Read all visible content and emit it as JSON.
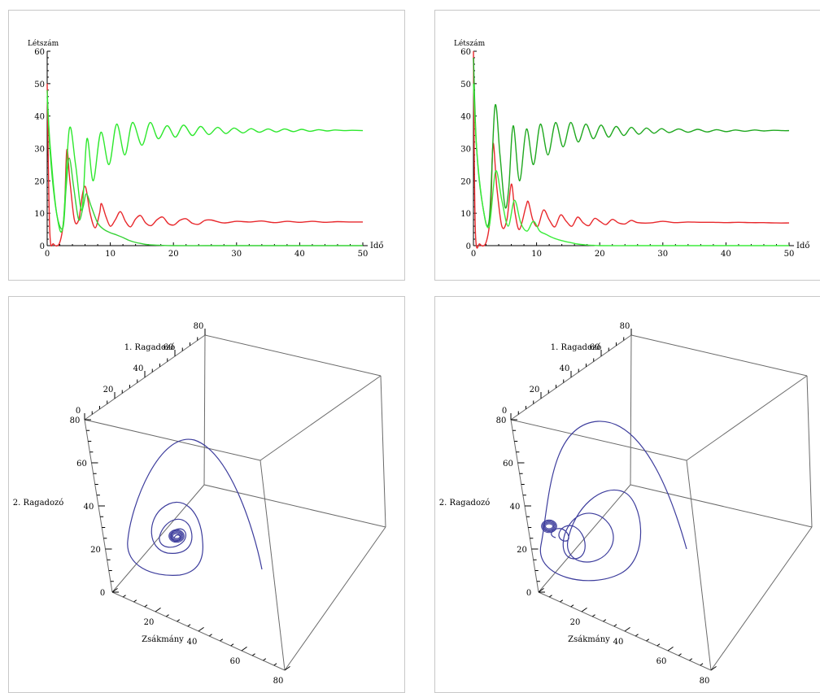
{
  "colors": {
    "prey": "#e8282c",
    "pred1_left": "#36d236",
    "pred2_left": "#2ee82e",
    "pred1_right": "#1fa81f",
    "pred2_right": "#3cec3c",
    "trajectory": "#3c3c9c",
    "axis": "#000000",
    "frame": "#6a6a6a"
  },
  "chart_data": [
    {
      "type": "line",
      "ylabel": "Létszám",
      "xlabel": "Idő",
      "xlim": [
        0,
        50
      ],
      "ylim": [
        0,
        60
      ],
      "xticks": [
        "0",
        "10",
        "20",
        "30",
        "40",
        "50"
      ],
      "yticks": [
        "0",
        "10",
        "20",
        "30",
        "40",
        "50",
        "60"
      ],
      "series": [
        {
          "role": "prey",
          "color": "#e8282c",
          "x": [
            0,
            0.4,
            1,
            2,
            2.7,
            3.1,
            3.6,
            4.3,
            5,
            5.6,
            6.1,
            6.8,
            7.6,
            8.3,
            8.6,
            9.3,
            10,
            10.8,
            11.6,
            12.4,
            13.2,
            14,
            14.8,
            15.6,
            16.5,
            17.4,
            18.3,
            19.2,
            20.1,
            21,
            22,
            23,
            24,
            25,
            26,
            28,
            30,
            32,
            34,
            36,
            38,
            40,
            42,
            44,
            46,
            48,
            50
          ],
          "y": [
            50,
            5,
            0.5,
            1,
            10,
            29.5,
            20,
            8,
            8,
            16,
            18,
            10,
            5.5,
            10,
            13,
            9,
            6,
            8,
            10.5,
            7.5,
            5.8,
            8.2,
            9.3,
            7,
            6.2,
            8,
            8.8,
            6.8,
            6.4,
            7.8,
            8.3,
            6.9,
            6.6,
            7.8,
            7.9,
            7,
            7.5,
            7.3,
            7.6,
            7.1,
            7.5,
            7.2,
            7.5,
            7.2,
            7.4,
            7.3,
            7.3
          ]
        },
        {
          "role": "predator-1",
          "color": "#36d236",
          "x": [
            0,
            0.5,
            1.5,
            2.5,
            3,
            3.5,
            4.2,
            5,
            5.7,
            6.2,
            7,
            8,
            9,
            10,
            11,
            12,
            13,
            14,
            15,
            16,
            18,
            20,
            25,
            30,
            40,
            50
          ],
          "y": [
            48,
            28,
            10,
            5.5,
            18,
            27,
            18,
            8,
            12,
            16,
            12,
            7,
            5,
            4,
            3.3,
            2.5,
            1.6,
            1,
            0.6,
            0.3,
            0.1,
            0,
            0,
            0,
            0,
            0
          ]
        },
        {
          "role": "predator-2",
          "color": "#2ee82e",
          "x": [
            0,
            0.5,
            1.5,
            2.5,
            3.5,
            4.5,
            5.5,
            6.3,
            7.3,
            8.5,
            9.8,
            11,
            12.3,
            13.5,
            15,
            16.3,
            17.6,
            19,
            20.3,
            21.6,
            23,
            24.3,
            25.6,
            27,
            28.3,
            29.6,
            31,
            32.3,
            33.6,
            35,
            36.3,
            37.6,
            39,
            40.3,
            41.6,
            43,
            44.3,
            45.6,
            47,
            48.3,
            50
          ],
          "y": [
            46,
            30,
            10,
            6,
            36,
            25,
            11,
            33,
            20,
            35,
            25,
            37.5,
            28,
            38,
            31,
            38,
            33,
            37,
            33.5,
            37.2,
            34,
            36.8,
            34.3,
            36.5,
            34.6,
            36.3,
            34.8,
            36.1,
            35,
            36,
            35.1,
            36,
            35.2,
            35.9,
            35.3,
            35.8,
            35.4,
            35.7,
            35.5,
            35.6,
            35.5
          ]
        }
      ]
    },
    {
      "type": "line",
      "ylabel": "Létszám",
      "xlabel": "Idő",
      "xlim": [
        0,
        50
      ],
      "ylim": [
        0,
        60
      ],
      "xticks": [
        "0",
        "10",
        "20",
        "30",
        "40",
        "50"
      ],
      "yticks": [
        "0",
        "10",
        "20",
        "30",
        "40",
        "50",
        "60"
      ],
      "series": [
        {
          "role": "prey",
          "color": "#e8282c",
          "x": [
            0,
            0.3,
            1,
            2,
            2.7,
            3.1,
            3.7,
            4.5,
            5.3,
            6,
            6.6,
            7.3,
            8.3,
            8.7,
            9.4,
            10.2,
            11.1,
            12,
            12.9,
            13.8,
            14.7,
            15.6,
            16.5,
            17.4,
            18.3,
            19.2,
            20.1,
            21,
            22,
            23,
            24,
            25,
            26,
            28,
            30,
            32,
            34,
            36,
            38,
            40,
            42,
            44,
            46,
            48,
            50
          ],
          "y": [
            60,
            5,
            0.5,
            1,
            10,
            31.5,
            18,
            6,
            8,
            19,
            10,
            5,
            12,
            13.5,
            8,
            6,
            11,
            8,
            5.8,
            9.5,
            7.5,
            6,
            8.8,
            7,
            6.2,
            8.4,
            7.4,
            6.5,
            8.1,
            7,
            6.7,
            7.8,
            7.1,
            7,
            7.5,
            7.1,
            7.3,
            7.2,
            7.2,
            7.1,
            7.2,
            7.1,
            7.1,
            7,
            7
          ]
        },
        {
          "role": "predator-1",
          "color": "#1fa81f",
          "x": [
            0,
            0.5,
            1.5,
            2.5,
            3.4,
            4.2,
            5,
            5.6,
            6.3,
            7.3,
            8.4,
            9.5,
            10.6,
            11.8,
            13,
            14.2,
            15.4,
            16.6,
            17.8,
            19,
            20.2,
            21.4,
            22.6,
            23.8,
            25,
            26.2,
            27.4,
            28.6,
            29.8,
            31,
            32.5,
            34,
            35.5,
            37,
            38.5,
            40,
            41.5,
            43,
            44.5,
            46,
            47.5,
            49,
            50
          ],
          "y": [
            58,
            30,
            12,
            8,
            43,
            28,
            12,
            18,
            37,
            20,
            36,
            25,
            37.5,
            28,
            38,
            30.5,
            38,
            32,
            37.5,
            33,
            37.2,
            33.5,
            36.8,
            34,
            36.5,
            34.4,
            36.3,
            34.7,
            36.1,
            34.9,
            36,
            35,
            35.9,
            35.1,
            35.8,
            35.2,
            35.7,
            35.3,
            35.7,
            35.4,
            35.6,
            35.5,
            35.5
          ]
        },
        {
          "role": "predator-2",
          "color": "#3cec3c",
          "x": [
            0,
            0.5,
            1.5,
            2.5,
            3.5,
            4.5,
            5.5,
            6.5,
            7.5,
            8.5,
            9.5,
            10.5,
            11.5,
            12.5,
            13.5,
            14.5,
            15.5,
            16.5,
            18,
            19,
            20,
            25,
            30,
            40,
            50
          ],
          "y": [
            50,
            30,
            12,
            6,
            23,
            14,
            6,
            14,
            7,
            4.5,
            7.5,
            4.5,
            3.5,
            2.5,
            1.8,
            1.3,
            0.9,
            0.5,
            0.2,
            0.1,
            0,
            0,
            0,
            0,
            0
          ]
        }
      ]
    },
    {
      "type": "line",
      "subtype": "3d-phase-trajectory",
      "axis_labels": {
        "x": "Zsákmány",
        "y": "1. Ragadozó",
        "z": "2. Ragadozó"
      },
      "xlim": [
        0,
        80
      ],
      "ylim": [
        0,
        80
      ],
      "zlim": [
        0,
        80
      ],
      "xticks": [
        "20",
        "40",
        "60",
        "80"
      ],
      "yticks": [
        "0",
        "20",
        "40",
        "60",
        "80"
      ],
      "zticks": [
        "0",
        "20",
        "40",
        "60",
        "80"
      ],
      "trajectory": {
        "color": "#3c3c9c",
        "spiral_end": "interior fixed point",
        "predator1_persists": false
      }
    },
    {
      "type": "line",
      "subtype": "3d-phase-trajectory",
      "axis_labels": {
        "x": "Zsákmány",
        "y": "1. Ragadozó",
        "z": "2. Ragadozó"
      },
      "xlim": [
        0,
        80
      ],
      "ylim": [
        0,
        80
      ],
      "zlim": [
        0,
        80
      ],
      "xticks": [
        "20",
        "40",
        "60",
        "80"
      ],
      "yticks": [
        "0",
        "20",
        "40",
        "60",
        "80"
      ],
      "zticks": [
        "0",
        "20",
        "40",
        "60",
        "80"
      ],
      "trajectory": {
        "color": "#3c3c9c",
        "spiral_end": "boundary fixed point",
        "predator1_persists": true
      }
    }
  ]
}
